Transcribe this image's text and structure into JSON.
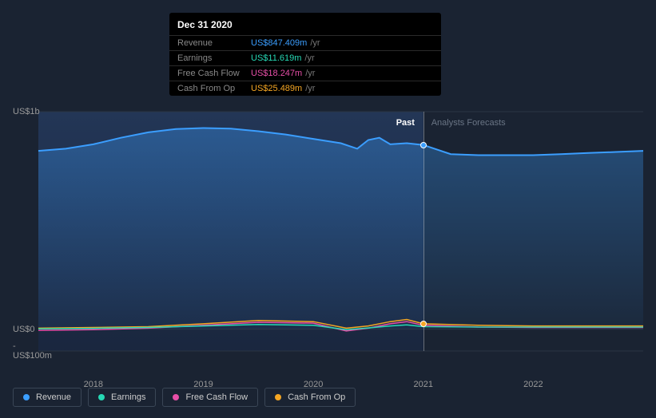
{
  "tooltip": {
    "date": "Dec 31 2020",
    "rows": [
      {
        "label": "Revenue",
        "value": "US$847.409m",
        "unit": "/yr",
        "color": "#3b9eff"
      },
      {
        "label": "Earnings",
        "value": "US$11.619m",
        "unit": "/yr",
        "color": "#26d9b5"
      },
      {
        "label": "Free Cash Flow",
        "value": "US$18.247m",
        "unit": "/yr",
        "color": "#e84fa8"
      },
      {
        "label": "Cash From Op",
        "value": "US$25.489m",
        "unit": "/yr",
        "color": "#f5a623"
      }
    ]
  },
  "chart": {
    "type": "area-line",
    "background_past": "#1f2d42",
    "background_forecast": "#1a2332",
    "grid_color": "#2a3544",
    "axis_label_color": "#999999",
    "text_fontsize": 11,
    "ylim": [
      -100,
      1000
    ],
    "y_ticks": [
      {
        "v": 1000,
        "label": "US$1b"
      },
      {
        "v": 0,
        "label": "US$0"
      },
      {
        "v": -100,
        "label": "-US$100m"
      }
    ],
    "xlim": [
      2017.5,
      2023.0
    ],
    "x_ticks": [
      {
        "v": 2018,
        "label": "2018"
      },
      {
        "v": 2019,
        "label": "2019"
      },
      {
        "v": 2020,
        "label": "2020"
      },
      {
        "v": 2021,
        "label": "2021"
      },
      {
        "v": 2022,
        "label": "2022"
      }
    ],
    "past_split_x": 2021.0,
    "past_label": "Past",
    "forecast_label": "Analysts Forecasts",
    "hover_x": 2021.0,
    "hover_dots": [
      {
        "color": "#3b9eff",
        "y": 847
      },
      {
        "color": "#f5a623",
        "y": 25
      }
    ],
    "series": [
      {
        "name": "Revenue",
        "color": "#3b9eff",
        "fill": true,
        "fill_opacity": 0.22,
        "line_width": 2,
        "points": [
          [
            2017.5,
            820
          ],
          [
            2017.75,
            830
          ],
          [
            2018.0,
            850
          ],
          [
            2018.25,
            880
          ],
          [
            2018.5,
            905
          ],
          [
            2018.75,
            920
          ],
          [
            2019.0,
            925
          ],
          [
            2019.25,
            922
          ],
          [
            2019.5,
            910
          ],
          [
            2019.75,
            895
          ],
          [
            2020.0,
            875
          ],
          [
            2020.25,
            855
          ],
          [
            2020.4,
            830
          ],
          [
            2020.5,
            870
          ],
          [
            2020.6,
            880
          ],
          [
            2020.7,
            850
          ],
          [
            2020.85,
            855
          ],
          [
            2021.0,
            847
          ],
          [
            2021.25,
            805
          ],
          [
            2021.5,
            800
          ],
          [
            2021.75,
            800
          ],
          [
            2022.0,
            800
          ],
          [
            2022.25,
            805
          ],
          [
            2022.5,
            810
          ],
          [
            2022.75,
            815
          ],
          [
            2023.0,
            820
          ]
        ]
      },
      {
        "name": "Cash From Op",
        "color": "#f5a623",
        "fill": false,
        "line_width": 1.5,
        "points": [
          [
            2017.5,
            5
          ],
          [
            2018.0,
            8
          ],
          [
            2018.5,
            12
          ],
          [
            2019.0,
            25
          ],
          [
            2019.5,
            40
          ],
          [
            2020.0,
            35
          ],
          [
            2020.3,
            5
          ],
          [
            2020.5,
            15
          ],
          [
            2020.7,
            35
          ],
          [
            2020.85,
            45
          ],
          [
            2021.0,
            25
          ],
          [
            2021.5,
            18
          ],
          [
            2022.0,
            15
          ],
          [
            2022.5,
            15
          ],
          [
            2023.0,
            15
          ]
        ]
      },
      {
        "name": "Free Cash Flow",
        "color": "#e84fa8",
        "fill": false,
        "line_width": 1.5,
        "points": [
          [
            2017.5,
            -5
          ],
          [
            2018.0,
            -2
          ],
          [
            2018.5,
            5
          ],
          [
            2019.0,
            18
          ],
          [
            2019.5,
            32
          ],
          [
            2020.0,
            28
          ],
          [
            2020.3,
            -8
          ],
          [
            2020.5,
            5
          ],
          [
            2020.7,
            25
          ],
          [
            2020.85,
            35
          ],
          [
            2021.0,
            18
          ],
          [
            2021.5,
            10
          ],
          [
            2022.0,
            8
          ],
          [
            2022.5,
            8
          ],
          [
            2023.0,
            8
          ]
        ]
      },
      {
        "name": "Earnings",
        "color": "#26d9b5",
        "fill": false,
        "line_width": 1.5,
        "dash_forecast": true,
        "points": [
          [
            2017.5,
            2
          ],
          [
            2018.0,
            4
          ],
          [
            2018.5,
            8
          ],
          [
            2019.0,
            15
          ],
          [
            2019.5,
            22
          ],
          [
            2020.0,
            18
          ],
          [
            2020.3,
            -2
          ],
          [
            2020.5,
            6
          ],
          [
            2020.7,
            15
          ],
          [
            2020.85,
            20
          ],
          [
            2021.0,
            12
          ],
          [
            2021.5,
            10
          ],
          [
            2022.0,
            10
          ],
          [
            2022.5,
            10
          ],
          [
            2023.0,
            10
          ]
        ]
      }
    ]
  },
  "legend": [
    {
      "label": "Revenue",
      "color": "#3b9eff"
    },
    {
      "label": "Earnings",
      "color": "#26d9b5"
    },
    {
      "label": "Free Cash Flow",
      "color": "#e84fa8"
    },
    {
      "label": "Cash From Op",
      "color": "#f5a623"
    }
  ]
}
